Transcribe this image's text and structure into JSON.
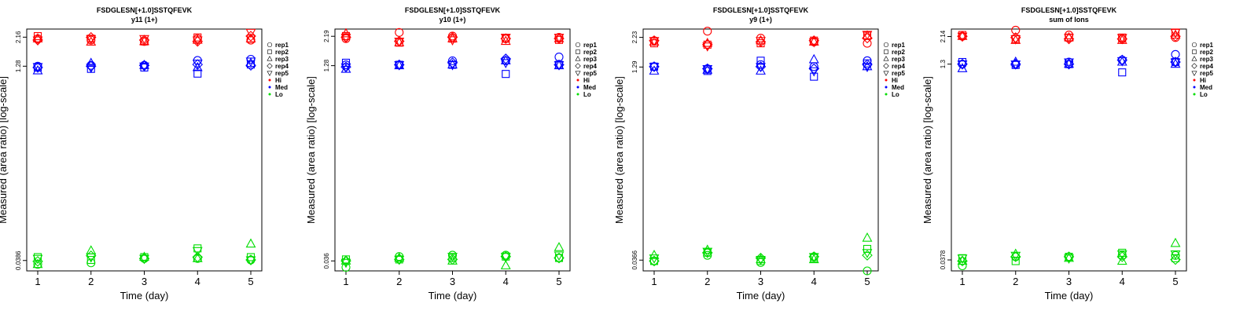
{
  "legend": {
    "reps": [
      "rep1",
      "rep2",
      "rep3",
      "rep4",
      "rep5"
    ],
    "levels": [
      "Hi",
      "Med",
      "Lo"
    ]
  },
  "level_colors": {
    "Hi": "#ff0000",
    "Med": "#0000ff",
    "Lo": "#00dd00"
  },
  "chart_data": [
    {
      "type": "scatter",
      "title": "FSDGLESN[+1.0]SSTQFEVK",
      "subtitle": "y11 (1+)",
      "xlabel": "Time (day)",
      "ylabel": "Measured (area ratio) [log-scale]",
      "x_ticks": [
        "1",
        "2",
        "3",
        "4",
        "5"
      ],
      "y_tick_labels": [
        "0.0386",
        "1.28",
        "2.16"
      ],
      "ylim": [
        0.032,
        2.5
      ],
      "log_y": true,
      "points": {
        "Hi": [
          [
            2.1,
            2.05,
            2.0,
            2.1,
            2.05
          ],
          [
            2.2,
            2.1,
            2.0,
            2.15,
            2.1
          ],
          [
            2.1,
            1.98,
            2.0,
            2.05,
            2.1
          ],
          [
            2.05,
            2.15,
            2.05,
            2.0,
            2.2
          ],
          [
            2.05,
            2.1,
            2.1,
            2.05,
            2.35
          ]
        ],
        "Med": [
          [
            1.28,
            1.3,
            1.3,
            1.42,
            1.45
          ],
          [
            1.25,
            1.22,
            1.25,
            1.12,
            1.32
          ],
          [
            1.18,
            1.35,
            1.3,
            1.25,
            1.35
          ],
          [
            1.25,
            1.28,
            1.3,
            1.32,
            1.3
          ],
          [
            1.27,
            1.25,
            1.28,
            1.35,
            1.4
          ]
        ],
        "Lo": [
          [
            0.036,
            0.037,
            0.04,
            0.04,
            0.039
          ],
          [
            0.041,
            0.039,
            0.041,
            0.048,
            0.041
          ],
          [
            0.036,
            0.046,
            0.041,
            0.04,
            0.052
          ],
          [
            0.038,
            0.042,
            0.04,
            0.041,
            0.039
          ],
          [
            0.04,
            0.041,
            0.04,
            0.046,
            0.039
          ]
        ]
      }
    },
    {
      "type": "scatter",
      "title": "FSDGLESN[+1.0]SSTQFEVK",
      "subtitle": "y10 (1+)",
      "xlabel": "Time (day)",
      "ylabel": "Measured (area ratio) [log-scale]",
      "x_ticks": [
        "1",
        "2",
        "3",
        "4",
        "5"
      ],
      "y_tick_labels": [
        "0.036",
        "1.28",
        "2.19"
      ],
      "ylim": [
        0.03,
        2.5
      ],
      "log_y": true,
      "points": {
        "Hi": [
          [
            2.1,
            2.35,
            2.2,
            2.1,
            2.15
          ],
          [
            2.2,
            1.95,
            2.1,
            2.1,
            2.05
          ],
          [
            2.3,
            1.95,
            2.1,
            2.0,
            2.1
          ],
          [
            2.15,
            2.0,
            2.15,
            2.1,
            2.1
          ],
          [
            2.15,
            2.0,
            2.05,
            2.15,
            2.15
          ]
        ],
        "Med": [
          [
            1.3,
            1.3,
            1.4,
            1.4,
            1.5
          ],
          [
            1.35,
            1.3,
            1.3,
            1.1,
            1.3
          ],
          [
            1.2,
            1.28,
            1.3,
            1.4,
            1.28
          ],
          [
            1.25,
            1.3,
            1.35,
            1.45,
            1.3
          ],
          [
            1.25,
            1.3,
            1.3,
            1.35,
            1.3
          ]
        ],
        "Lo": [
          [
            0.032,
            0.039,
            0.04,
            0.04,
            0.038
          ],
          [
            0.037,
            0.037,
            0.038,
            0.039,
            0.038
          ],
          [
            0.036,
            0.038,
            0.036,
            0.033,
            0.046
          ],
          [
            0.036,
            0.037,
            0.037,
            0.039,
            0.038
          ],
          [
            0.035,
            0.037,
            0.039,
            0.039,
            0.04
          ]
        ]
      }
    },
    {
      "type": "scatter",
      "title": "FSDGLESN[+1.0]SSTQFEVK",
      "subtitle": "y9 (1+)",
      "xlabel": "Time (day)",
      "ylabel": "Measured (area ratio) [log-scale]",
      "x_ticks": [
        "1",
        "2",
        "3",
        "4",
        "5"
      ],
      "y_tick_labels": [
        "0.0366",
        "1.29",
        "2.23"
      ],
      "ylim": [
        0.03,
        2.6
      ],
      "log_y": true,
      "points": {
        "Hi": [
          [
            2.1,
            2.5,
            2.2,
            2.05,
            2.0
          ],
          [
            2.0,
            1.95,
            2.0,
            2.1,
            2.3
          ],
          [
            2.05,
            2.0,
            2.1,
            2.05,
            2.3
          ],
          [
            2.1,
            1.95,
            2.05,
            2.1,
            2.2
          ],
          [
            2.1,
            1.9,
            2.1,
            2.05,
            2.35
          ]
        ],
        "Med": [
          [
            1.3,
            1.25,
            1.35,
            1.3,
            1.45
          ],
          [
            1.3,
            1.2,
            1.45,
            1.08,
            1.38
          ],
          [
            1.2,
            1.22,
            1.2,
            1.48,
            1.3
          ],
          [
            1.3,
            1.25,
            1.3,
            1.25,
            1.35
          ],
          [
            1.3,
            1.25,
            1.3,
            1.2,
            1.3
          ]
        ],
        "Lo": [
          [
            0.036,
            0.04,
            0.035,
            0.039,
            0.03
          ],
          [
            0.036,
            0.042,
            0.036,
            0.038,
            0.045
          ],
          [
            0.04,
            0.044,
            0.037,
            0.037,
            0.055
          ],
          [
            0.036,
            0.042,
            0.038,
            0.039,
            0.04
          ],
          [
            0.038,
            0.043,
            0.037,
            0.039,
            0.042
          ]
        ]
      }
    },
    {
      "type": "scatter",
      "title": "FSDGLESN[+1.0]SSTQFEVK",
      "subtitle": "sum of Ions",
      "xlabel": "Time (day)",
      "ylabel": "Measured (area ratio) [log-scale]",
      "x_ticks": [
        "1",
        "2",
        "3",
        "4",
        "5"
      ],
      "y_tick_labels": [
        "0.0378",
        "1.3",
        "2.14"
      ],
      "ylim": [
        0.031,
        2.45
      ],
      "log_y": true,
      "points": {
        "Hi": [
          [
            2.15,
            2.4,
            2.2,
            2.05,
            2.1
          ],
          [
            2.2,
            2.05,
            2.1,
            2.1,
            2.3
          ],
          [
            2.15,
            2.0,
            2.1,
            2.0,
            2.2
          ],
          [
            2.15,
            2.1,
            2.05,
            2.05,
            2.15
          ],
          [
            2.15,
            2.05,
            2.1,
            2.1,
            2.3
          ]
        ],
        "Med": [
          [
            1.3,
            1.3,
            1.35,
            1.4,
            1.55
          ],
          [
            1.35,
            1.28,
            1.3,
            1.12,
            1.35
          ],
          [
            1.2,
            1.35,
            1.3,
            1.35,
            1.3
          ],
          [
            1.3,
            1.3,
            1.3,
            1.4,
            1.35
          ],
          [
            1.3,
            1.3,
            1.35,
            1.38,
            1.35
          ]
        ],
        "Lo": [
          [
            0.034,
            0.04,
            0.04,
            0.041,
            0.041
          ],
          [
            0.039,
            0.037,
            0.04,
            0.043,
            0.039
          ],
          [
            0.037,
            0.042,
            0.039,
            0.037,
            0.051
          ],
          [
            0.037,
            0.04,
            0.04,
            0.04,
            0.038
          ],
          [
            0.039,
            0.041,
            0.039,
            0.042,
            0.042
          ]
        ]
      }
    }
  ]
}
